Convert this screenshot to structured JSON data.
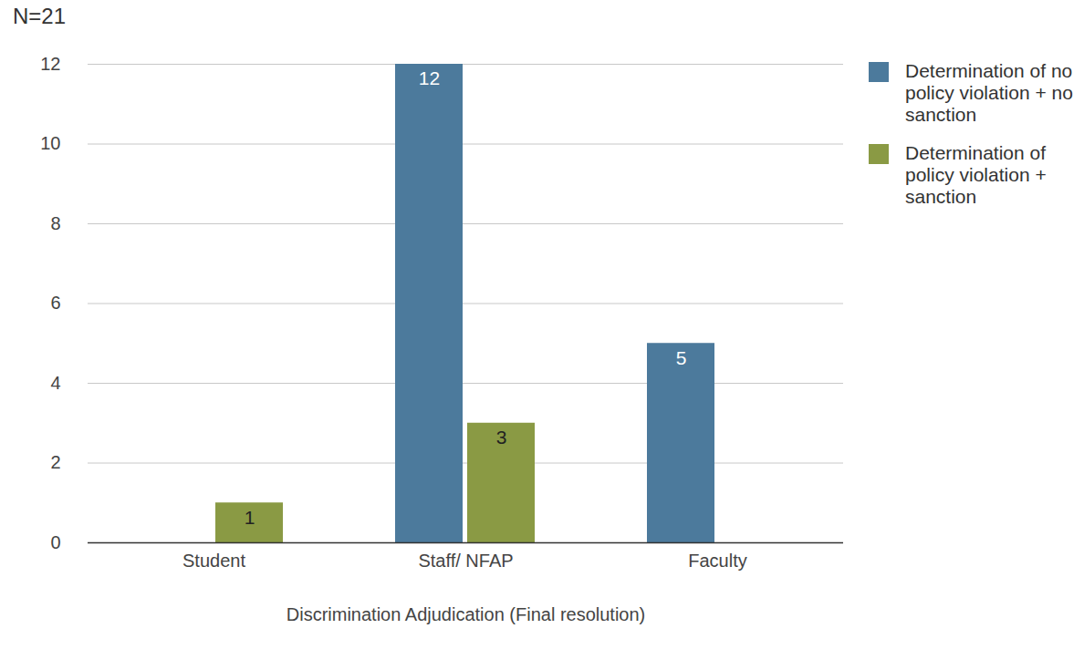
{
  "chart_data": {
    "type": "bar",
    "annotation": "N=21",
    "x_label": "Discrimination Adjudication (Final resolution)",
    "categories": [
      "Student",
      "Staff/ NFAP",
      "Faculty"
    ],
    "series": [
      {
        "name": "Determination of no policy violation + no sanction",
        "color": "#4c7a9c",
        "values": [
          null,
          12,
          5
        ]
      },
      {
        "name": "Determination of policy violation + sanction",
        "color": "#8a9a44",
        "values": [
          1,
          3,
          null
        ]
      }
    ],
    "ylim": [
      0,
      12
    ],
    "yticks": [
      0,
      2,
      4,
      6,
      8,
      10,
      12
    ],
    "grid": true,
    "legend": "right",
    "data_labels": true
  }
}
